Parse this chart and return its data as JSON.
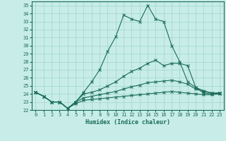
{
  "xlabel": "Humidex (Indice chaleur)",
  "xlim": [
    -0.5,
    23.5
  ],
  "ylim": [
    22,
    35.5
  ],
  "yticks": [
    22,
    23,
    24,
    25,
    26,
    27,
    28,
    29,
    30,
    31,
    32,
    33,
    34,
    35
  ],
  "xticks": [
    0,
    1,
    2,
    3,
    4,
    5,
    6,
    7,
    8,
    9,
    10,
    11,
    12,
    13,
    14,
    15,
    16,
    17,
    18,
    19,
    20,
    21,
    22,
    23
  ],
  "bg_color": "#c8ede8",
  "grid_color": "#a0d4cc",
  "line_color": "#1a6b5a",
  "line1": [
    24.2,
    23.7,
    23.0,
    23.0,
    22.2,
    23.0,
    24.2,
    25.5,
    27.0,
    29.3,
    31.1,
    33.8,
    33.3,
    33.0,
    35.0,
    33.3,
    33.0,
    30.0,
    28.0,
    25.5,
    24.8,
    24.1,
    24.0,
    24.1
  ],
  "line2": [
    24.2,
    23.7,
    23.0,
    23.0,
    22.2,
    23.0,
    24.0,
    24.2,
    24.5,
    25.0,
    25.5,
    26.2,
    26.8,
    27.2,
    27.8,
    28.2,
    27.5,
    27.8,
    27.8,
    27.5,
    24.8,
    24.4,
    24.1,
    24.1
  ],
  "line3": [
    24.2,
    23.7,
    23.0,
    23.0,
    22.2,
    23.0,
    23.5,
    23.7,
    23.9,
    24.1,
    24.3,
    24.6,
    24.9,
    25.1,
    25.4,
    25.5,
    25.6,
    25.7,
    25.5,
    25.2,
    24.6,
    24.3,
    24.1,
    24.1
  ],
  "line4": [
    24.2,
    23.7,
    23.0,
    23.0,
    22.2,
    22.8,
    23.2,
    23.3,
    23.4,
    23.5,
    23.6,
    23.7,
    23.8,
    23.9,
    24.0,
    24.1,
    24.2,
    24.3,
    24.2,
    24.1,
    24.0,
    23.9,
    23.9,
    24.0
  ]
}
